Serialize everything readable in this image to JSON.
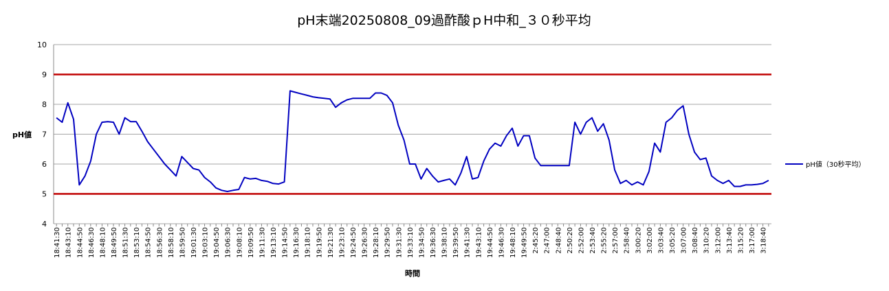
{
  "chart_data": {
    "type": "line",
    "title": "pH末端20250808_09過酢酸ｐH中和_３０秒平均",
    "y_label": "pH値",
    "x_label": "時間",
    "categories": [
      "18:41:30",
      null,
      "18:43:10",
      null,
      "18:44:50",
      null,
      "18:46:30",
      null,
      "18:48:10",
      null,
      "18:49:50",
      null,
      "18:51:30",
      null,
      "18:53:10",
      null,
      "18:54:50",
      null,
      "18:56:30",
      null,
      "18:58:10",
      null,
      "18:59:50",
      null,
      "19:01:30",
      null,
      "19:03:10",
      null,
      "19:04:50",
      null,
      "19:06:30",
      null,
      "19:08:10",
      null,
      "19:09:50",
      null,
      "19:11:30",
      null,
      "19:13:10",
      null,
      "19:14:50",
      null,
      "19:16:30",
      null,
      "19:18:10",
      null,
      "19:19:50",
      null,
      "19:21:30",
      null,
      "19:23:10",
      null,
      "19:24:50",
      null,
      "19:26:30",
      null,
      "19:28:10",
      null,
      "19:29:50",
      null,
      "19:31:30",
      null,
      "19:33:10",
      null,
      "19:34:50",
      null,
      "19:36:30",
      null,
      "19:38:10",
      null,
      "19:39:50",
      null,
      "19:41:30",
      null,
      "19:43:10",
      null,
      "19:44:50",
      null,
      "19:46:30",
      null,
      "19:48:10",
      null,
      "19:49:50",
      null,
      "2:45:20",
      null,
      "2:47:00",
      null,
      "2:48:40",
      null,
      "2:50:20",
      null,
      "2:52:00",
      null,
      "2:53:40",
      null,
      "2:55:20",
      null,
      "2:57:00",
      null,
      "2:58:40",
      null,
      "3:00:20",
      null,
      "3:02:00",
      null,
      "3:03:40",
      null,
      "3:05:20",
      null,
      "3:07:00",
      null,
      "3:08:40",
      null,
      "3:10:20",
      null,
      "3:12:00",
      null,
      "3:13:40",
      null,
      "3:15:20",
      null,
      "3:17:00",
      null,
      "3:18:40",
      null
    ],
    "series": [
      {
        "name": "pH値（30秒平均）",
        "color": "#0000c0",
        "values": [
          7.55,
          7.4,
          8.05,
          7.5,
          5.3,
          5.6,
          6.1,
          7.0,
          7.4,
          7.42,
          7.4,
          7.0,
          7.55,
          7.42,
          7.42,
          7.1,
          6.75,
          6.5,
          6.25,
          6.0,
          5.8,
          5.6,
          6.25,
          6.05,
          5.85,
          5.8,
          5.55,
          5.4,
          5.2,
          5.12,
          5.08,
          5.12,
          5.15,
          5.55,
          5.5,
          5.52,
          5.45,
          5.42,
          5.35,
          5.33,
          5.4,
          8.45,
          8.4,
          8.35,
          8.3,
          8.25,
          8.22,
          8.2,
          8.18,
          7.9,
          8.05,
          8.15,
          8.2,
          8.2,
          8.2,
          8.2,
          8.38,
          8.38,
          8.3,
          8.05,
          7.3,
          6.8,
          6.0,
          6.0,
          5.5,
          5.85,
          5.6,
          5.4,
          5.45,
          5.5,
          5.3,
          5.7,
          6.25,
          5.5,
          5.55,
          6.1,
          6.5,
          6.7,
          6.6,
          6.95,
          7.2,
          6.6,
          6.95,
          6.95,
          6.2,
          5.95,
          5.95,
          5.95,
          5.95,
          5.95,
          5.95,
          7.4,
          7.0,
          7.4,
          7.55,
          7.1,
          7.35,
          6.8,
          5.8,
          5.35,
          5.45,
          5.3,
          5.4,
          5.3,
          5.75,
          6.7,
          6.4,
          7.4,
          7.55,
          7.8,
          7.95,
          7.0,
          6.4,
          6.15,
          6.2,
          5.6,
          5.45,
          5.35,
          5.45,
          5.25,
          5.25,
          5.3,
          5.3,
          5.32,
          5.35,
          5.45
        ]
      }
    ],
    "reference_lines": [
      9,
      5
    ],
    "reference_color": "#c00000",
    "ylim": [
      4,
      10
    ],
    "yticks": [
      4,
      5,
      6,
      7,
      8,
      9,
      10
    ],
    "grid": true,
    "legend": "right"
  }
}
